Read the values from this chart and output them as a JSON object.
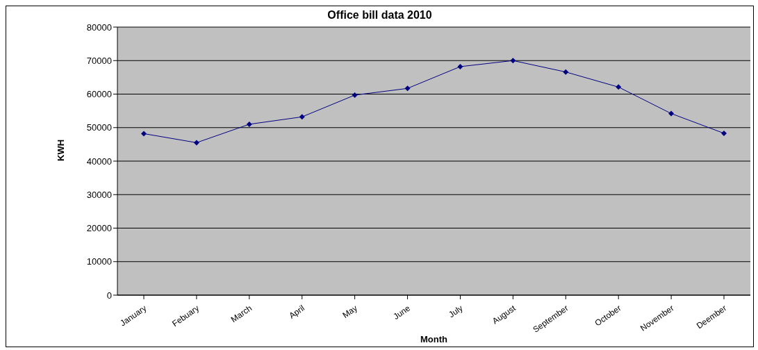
{
  "chart_data": {
    "type": "line",
    "title": "Office bill data 2010",
    "xlabel": "Month",
    "ylabel": "KWH",
    "categories": [
      "January",
      "Febuary",
      "March",
      "April",
      "May",
      "June",
      "July",
      "August",
      "September",
      "October",
      "November",
      "Deember"
    ],
    "series": [
      {
        "color": "#000080",
        "values": [
          48200,
          45500,
          51000,
          53200,
          59700,
          61700,
          68200,
          70000,
          66600,
          62100,
          54200,
          48300
        ]
      }
    ],
    "ylim": [
      0,
      80000
    ],
    "yticks": [
      0,
      10000,
      20000,
      30000,
      40000,
      50000,
      60000,
      70000,
      80000
    ],
    "grid": "y",
    "marker": "diamond",
    "line_style": "solid"
  }
}
